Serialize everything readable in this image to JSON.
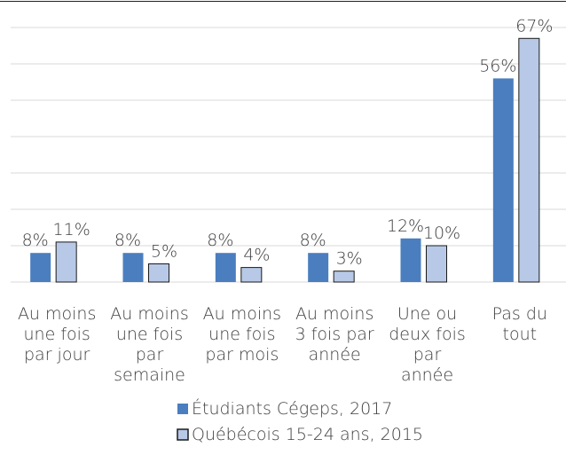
{
  "chart_data": {
    "type": "bar",
    "categories": [
      "Au moins\nune fois\npar jour",
      "Au moins\nune fois\npar\nsemaine",
      "Au moins\nune fois\npar mois",
      "Au moins\n3 fois par\nannée",
      "Une ou\ndeux fois\npar\nannée",
      "Pas du\ntout"
    ],
    "series": [
      {
        "name": "Étudiants Cégeps, 2017",
        "color": "#4a7ebf",
        "values": [
          8,
          8,
          8,
          8,
          12,
          56
        ],
        "value_labels": [
          "8%",
          "8%",
          "8%",
          "8%",
          "12%",
          "56%"
        ]
      },
      {
        "name": "Québécois 15-24 ans, 2015",
        "color": "#b7c9e6",
        "values": [
          11,
          5,
          4,
          3,
          10,
          67
        ],
        "value_labels": [
          "11%",
          "5%",
          "4%",
          "3%",
          "10%",
          "67%"
        ]
      }
    ],
    "ylim": [
      0,
      70
    ],
    "yticks": [
      0,
      10,
      20,
      30,
      40,
      50,
      60,
      70
    ],
    "grid": true,
    "legend": "bottom"
  }
}
